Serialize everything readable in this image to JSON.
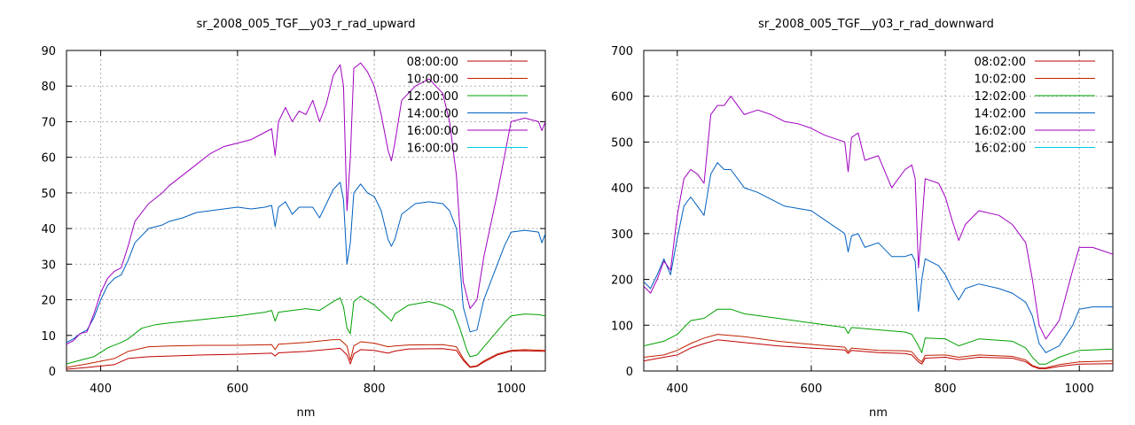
{
  "chart_data": [
    {
      "type": "line",
      "title": "sr_2008_005_TGF__y03_r_rad_upward",
      "xlabel": "nm",
      "ylabel": "",
      "xlim": [
        350,
        1050
      ],
      "ylim": [
        0,
        90
      ],
      "xticks": [
        400,
        600,
        800,
        1000
      ],
      "yticks": [
        0,
        10,
        20,
        30,
        40,
        50,
        60,
        70,
        80,
        90
      ],
      "grid": true,
      "legend_position": "top-right",
      "series": [
        {
          "name": "08:00:00",
          "color": "#c00000",
          "x": [
            350,
            380,
            420,
            440,
            470,
            500,
            550,
            600,
            650,
            655,
            660,
            700,
            740,
            750,
            760,
            765,
            770,
            780,
            800,
            820,
            830,
            850,
            900,
            920,
            930,
            940,
            950,
            960,
            980,
            1000,
            1020,
            1050
          ],
          "y": [
            0.5,
            1.0,
            1.8,
            3.5,
            4.0,
            4.2,
            4.5,
            4.7,
            5.0,
            4.2,
            5.1,
            5.5,
            6.2,
            6.4,
            4.5,
            2.0,
            4.8,
            6.0,
            5.8,
            5.0,
            5.6,
            6.2,
            6.3,
            5.8,
            3.0,
            1.0,
            1.3,
            2.5,
            4.5,
            5.6,
            5.7,
            5.5
          ]
        },
        {
          "name": "10:00:00",
          "color": "#c02000",
          "x": [
            350,
            380,
            420,
            440,
            470,
            500,
            550,
            600,
            650,
            655,
            660,
            700,
            740,
            750,
            760,
            765,
            770,
            780,
            800,
            820,
            830,
            850,
            900,
            920,
            930,
            940,
            950,
            960,
            980,
            1000,
            1020,
            1050
          ],
          "y": [
            1.0,
            2.0,
            3.5,
            5.5,
            6.8,
            7.0,
            7.2,
            7.2,
            7.4,
            6.0,
            7.5,
            8.0,
            8.8,
            8.8,
            7.0,
            3.0,
            7.0,
            8.2,
            7.8,
            6.8,
            7.0,
            7.3,
            7.4,
            6.8,
            3.5,
            1.2,
            1.5,
            2.8,
            4.8,
            5.8,
            6.0,
            5.8
          ]
        },
        {
          "name": "12:00:00",
          "color": "#00a000",
          "x": [
            350,
            370,
            390,
            410,
            430,
            440,
            460,
            480,
            500,
            550,
            600,
            640,
            650,
            655,
            660,
            700,
            720,
            740,
            750,
            755,
            760,
            765,
            770,
            780,
            800,
            820,
            825,
            830,
            850,
            880,
            900,
            915,
            925,
            935,
            940,
            950,
            970,
            990,
            1000,
            1020,
            1040,
            1050
          ],
          "y": [
            2.0,
            3.0,
            4.0,
            6.5,
            8.0,
            9.0,
            12.0,
            13.0,
            13.5,
            14.5,
            15.5,
            16.5,
            17.0,
            14.0,
            16.5,
            17.5,
            17.0,
            19.5,
            20.5,
            18.0,
            12.0,
            10.5,
            19.5,
            21.0,
            18.5,
            15.0,
            14.0,
            16.0,
            18.5,
            19.5,
            18.5,
            17.0,
            12.0,
            6.0,
            4.0,
            4.5,
            9.0,
            13.5,
            15.5,
            16.0,
            15.8,
            15.5
          ]
        },
        {
          "name": "14:00:00",
          "color": "#0060c0",
          "x": [
            350,
            360,
            370,
            380,
            390,
            400,
            410,
            420,
            430,
            440,
            450,
            470,
            490,
            500,
            520,
            540,
            560,
            580,
            600,
            620,
            640,
            650,
            655,
            660,
            670,
            680,
            690,
            700,
            710,
            720,
            730,
            740,
            750,
            755,
            760,
            765,
            770,
            780,
            790,
            800,
            810,
            820,
            825,
            830,
            840,
            860,
            880,
            900,
            910,
            920,
            925,
            930,
            940,
            950,
            960,
            980,
            990,
            1000,
            1020,
            1040,
            1045,
            1050
          ],
          "y": [
            8.0,
            9.0,
            10.5,
            11.5,
            15.0,
            20.0,
            24.0,
            26.0,
            27.0,
            31.0,
            36.0,
            40.0,
            41.0,
            42.0,
            43.0,
            44.5,
            45.0,
            45.5,
            46.0,
            45.5,
            46.0,
            46.5,
            40.5,
            46.0,
            47.5,
            44.0,
            46.0,
            46.0,
            46.0,
            43.0,
            47.0,
            51.0,
            53.0,
            48.0,
            30.0,
            36.0,
            50.0,
            52.5,
            50.0,
            49.0,
            45.0,
            37.0,
            35.0,
            37.0,
            44.0,
            47.0,
            47.5,
            47.0,
            45.0,
            40.0,
            30.0,
            18.0,
            11.0,
            11.5,
            20.0,
            30.0,
            35.0,
            39.0,
            39.5,
            39.0,
            36.0,
            38.5
          ]
        },
        {
          "name": "16:00:00",
          "color": "#a000c0",
          "x": [
            350,
            360,
            370,
            380,
            390,
            400,
            410,
            420,
            430,
            440,
            450,
            470,
            490,
            500,
            520,
            540,
            560,
            580,
            600,
            620,
            640,
            650,
            655,
            660,
            670,
            680,
            690,
            700,
            710,
            720,
            730,
            740,
            750,
            755,
            760,
            765,
            770,
            780,
            790,
            800,
            810,
            820,
            825,
            830,
            840,
            860,
            880,
            900,
            910,
            920,
            925,
            930,
            940,
            950,
            960,
            980,
            990,
            1000,
            1020,
            1040,
            1045,
            1050
          ],
          "y": [
            7.5,
            8.5,
            10.5,
            11.0,
            16.0,
            22.0,
            26.0,
            28.0,
            29.0,
            35.0,
            42.0,
            47.0,
            50.0,
            52.0,
            55.0,
            58.0,
            61.0,
            63.0,
            64.0,
            65.0,
            67.0,
            68.0,
            60.5,
            70.0,
            74.0,
            70.0,
            73.0,
            72.0,
            76.0,
            70.0,
            75.0,
            83.0,
            86.0,
            80.0,
            45.0,
            60.0,
            85.0,
            86.5,
            84.0,
            80.0,
            72.0,
            62.0,
            59.0,
            64.0,
            76.0,
            80.0,
            82.0,
            78.0,
            70.0,
            55.0,
            40.0,
            25.0,
            17.5,
            20.0,
            32.0,
            50.0,
            60.0,
            70.0,
            71.0,
            70.0,
            67.5,
            70.0
          ]
        },
        {
          "name": "16:00:00",
          "color": "#00c8e0",
          "x": [],
          "y": []
        }
      ]
    },
    {
      "type": "line",
      "title": "sr_2008_005_TGF__y03_r_rad_downward",
      "xlabel": "nm",
      "ylabel": "",
      "xlim": [
        350,
        1050
      ],
      "ylim": [
        0,
        700
      ],
      "xticks": [
        400,
        600,
        800,
        1000
      ],
      "yticks": [
        0,
        100,
        200,
        300,
        400,
        500,
        600,
        700
      ],
      "grid": true,
      "legend_position": "top-right",
      "series": [
        {
          "name": "08:02:00",
          "color": "#c00000",
          "x": [
            350,
            380,
            400,
            420,
            440,
            460,
            500,
            550,
            600,
            650,
            655,
            660,
            700,
            740,
            750,
            760,
            765,
            770,
            800,
            820,
            850,
            900,
            920,
            930,
            940,
            950,
            970,
            1000,
            1050
          ],
          "y": [
            22,
            30,
            35,
            50,
            60,
            68,
            62,
            55,
            50,
            46,
            38,
            45,
            40,
            38,
            35,
            20,
            15,
            28,
            30,
            25,
            30,
            28,
            20,
            10,
            5,
            5,
            10,
            15,
            16
          ]
        },
        {
          "name": "10:02:00",
          "color": "#c02000",
          "x": [
            350,
            380,
            400,
            420,
            440,
            460,
            500,
            550,
            600,
            650,
            655,
            660,
            700,
            740,
            750,
            760,
            765,
            770,
            800,
            820,
            850,
            900,
            920,
            930,
            940,
            950,
            970,
            1000,
            1050
          ],
          "y": [
            30,
            35,
            45,
            60,
            72,
            80,
            75,
            65,
            58,
            52,
            42,
            50,
            45,
            44,
            42,
            25,
            20,
            34,
            35,
            30,
            35,
            32,
            24,
            12,
            7,
            7,
            14,
            20,
            22
          ]
        },
        {
          "name": "12:02:00",
          "color": "#00a000",
          "x": [
            350,
            380,
            400,
            420,
            440,
            460,
            480,
            500,
            550,
            600,
            650,
            655,
            660,
            700,
            740,
            750,
            760,
            765,
            770,
            800,
            820,
            850,
            900,
            920,
            930,
            940,
            950,
            970,
            1000,
            1050
          ],
          "y": [
            55,
            65,
            80,
            110,
            115,
            135,
            135,
            125,
            115,
            105,
            95,
            82,
            95,
            90,
            85,
            80,
            55,
            40,
            72,
            70,
            55,
            70,
            65,
            50,
            30,
            15,
            15,
            30,
            45,
            48
          ]
        },
        {
          "name": "14:02:00",
          "color": "#0060c0",
          "x": [
            350,
            360,
            370,
            380,
            390,
            400,
            410,
            420,
            430,
            440,
            450,
            460,
            470,
            480,
            500,
            520,
            540,
            560,
            580,
            600,
            620,
            640,
            650,
            655,
            660,
            670,
            680,
            700,
            720,
            740,
            750,
            755,
            760,
            765,
            770,
            790,
            800,
            810,
            820,
            830,
            850,
            880,
            900,
            920,
            930,
            940,
            950,
            970,
            990,
            1000,
            1020,
            1050
          ],
          "y": [
            195,
            180,
            210,
            245,
            210,
            290,
            360,
            380,
            360,
            340,
            430,
            455,
            440,
            440,
            400,
            390,
            375,
            360,
            355,
            350,
            330,
            310,
            300,
            260,
            295,
            300,
            270,
            280,
            250,
            250,
            255,
            240,
            130,
            200,
            245,
            230,
            210,
            180,
            155,
            180,
            190,
            180,
            170,
            150,
            120,
            60,
            40,
            55,
            100,
            135,
            140,
            140
          ]
        },
        {
          "name": "16:02:00",
          "color": "#a000c0",
          "x": [
            350,
            360,
            370,
            380,
            390,
            400,
            410,
            420,
            430,
            440,
            450,
            460,
            470,
            480,
            500,
            520,
            540,
            560,
            580,
            600,
            620,
            640,
            650,
            655,
            660,
            670,
            680,
            700,
            720,
            740,
            750,
            755,
            760,
            765,
            770,
            790,
            800,
            810,
            820,
            830,
            850,
            880,
            900,
            920,
            930,
            940,
            950,
            970,
            990,
            1000,
            1020,
            1050
          ],
          "y": [
            185,
            170,
            200,
            240,
            220,
            340,
            420,
            440,
            430,
            410,
            560,
            580,
            580,
            600,
            560,
            570,
            560,
            545,
            540,
            530,
            515,
            505,
            500,
            435,
            510,
            520,
            460,
            470,
            400,
            440,
            450,
            420,
            225,
            320,
            420,
            410,
            380,
            330,
            285,
            320,
            350,
            340,
            320,
            280,
            200,
            100,
            70,
            110,
            220,
            270,
            270,
            255
          ]
        },
        {
          "name": "16:02:00",
          "color": "#00c8e0",
          "x": [],
          "y": []
        }
      ]
    }
  ]
}
